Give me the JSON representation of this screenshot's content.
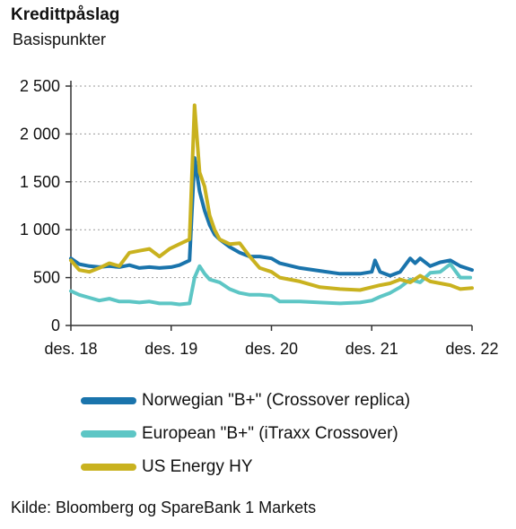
{
  "chart_data": {
    "type": "line",
    "title": "Kredittpåslag",
    "subtitle": "Basispunkter",
    "x_ticks": [
      "des. 18",
      "des. 19",
      "des. 20",
      "des. 21",
      "des. 22"
    ],
    "x_tick_values": [
      2018.917,
      2019.917,
      2020.917,
      2021.917,
      2022.917
    ],
    "xlim": [
      2018.917,
      2022.917
    ],
    "y_ticks": [
      "0",
      "500",
      "1 000",
      "1 500",
      "2 000",
      "2 500"
    ],
    "y_tick_values": [
      0,
      500,
      1000,
      1500,
      2000,
      2500
    ],
    "ylim": [
      0,
      2500
    ],
    "grid": "horizontal dotted",
    "legend_position": "below",
    "series": [
      {
        "name": "Norwegian \"B+\" (Crossover replica)",
        "color": "#1a74ac",
        "x": [
          2018.917,
          2019.0,
          2019.1,
          2019.2,
          2019.3,
          2019.4,
          2019.5,
          2019.6,
          2019.7,
          2019.8,
          2019.917,
          2020.0,
          2020.1,
          2020.15,
          2020.2,
          2020.25,
          2020.3,
          2020.35,
          2020.4,
          2020.5,
          2020.6,
          2020.7,
          2020.8,
          2020.917,
          2021.0,
          2021.2,
          2021.4,
          2021.6,
          2021.8,
          2021.917,
          2021.95,
          2022.0,
          2022.1,
          2022.2,
          2022.3,
          2022.35,
          2022.4,
          2022.5,
          2022.6,
          2022.7,
          2022.8,
          2022.917
        ],
        "values": [
          700,
          640,
          620,
          610,
          620,
          610,
          630,
          600,
          610,
          600,
          610,
          630,
          680,
          1750,
          1400,
          1200,
          1050,
          950,
          900,
          820,
          760,
          720,
          720,
          700,
          650,
          600,
          570,
          540,
          540,
          560,
          680,
          560,
          520,
          560,
          700,
          650,
          700,
          620,
          660,
          680,
          620,
          580
        ]
      },
      {
        "name": "European \"B+\" (iTraxx Crossover)",
        "color": "#5dc6c5",
        "x": [
          2018.917,
          2019.0,
          2019.1,
          2019.2,
          2019.3,
          2019.4,
          2019.5,
          2019.6,
          2019.7,
          2019.8,
          2019.917,
          2020.0,
          2020.1,
          2020.15,
          2020.2,
          2020.25,
          2020.3,
          2020.4,
          2020.5,
          2020.6,
          2020.7,
          2020.8,
          2020.917,
          2021.0,
          2021.2,
          2021.4,
          2021.6,
          2021.8,
          2021.917,
          2022.0,
          2022.1,
          2022.2,
          2022.3,
          2022.4,
          2022.5,
          2022.6,
          2022.7,
          2022.8,
          2022.9
        ],
        "values": [
          360,
          320,
          290,
          260,
          280,
          250,
          250,
          240,
          250,
          230,
          230,
          220,
          230,
          500,
          620,
          540,
          480,
          450,
          380,
          340,
          320,
          320,
          310,
          250,
          250,
          240,
          230,
          240,
          260,
          300,
          340,
          400,
          480,
          450,
          550,
          560,
          640,
          500,
          500
        ]
      },
      {
        "name": "US Energy HY",
        "color": "#c9b21f",
        "x": [
          2018.917,
          2019.0,
          2019.1,
          2019.2,
          2019.3,
          2019.4,
          2019.5,
          2019.6,
          2019.7,
          2019.8,
          2019.9,
          2020.0,
          2020.1,
          2020.15,
          2020.2,
          2020.25,
          2020.3,
          2020.35,
          2020.4,
          2020.5,
          2020.6,
          2020.7,
          2020.8,
          2020.917,
          2021.0,
          2021.2,
          2021.4,
          2021.6,
          2021.8,
          2021.917,
          2022.0,
          2022.1,
          2022.2,
          2022.3,
          2022.4,
          2022.5,
          2022.6,
          2022.7,
          2022.8,
          2022.917
        ],
        "values": [
          680,
          580,
          560,
          600,
          650,
          620,
          760,
          780,
          800,
          720,
          800,
          850,
          900,
          2300,
          1600,
          1450,
          1150,
          1000,
          900,
          850,
          860,
          720,
          600,
          560,
          500,
          460,
          400,
          380,
          370,
          400,
          420,
          440,
          480,
          450,
          520,
          460,
          440,
          420,
          380,
          390
        ]
      }
    ]
  },
  "footer": {
    "source": "Kilde: Bloomberg og SpareBank 1 Markets"
  }
}
